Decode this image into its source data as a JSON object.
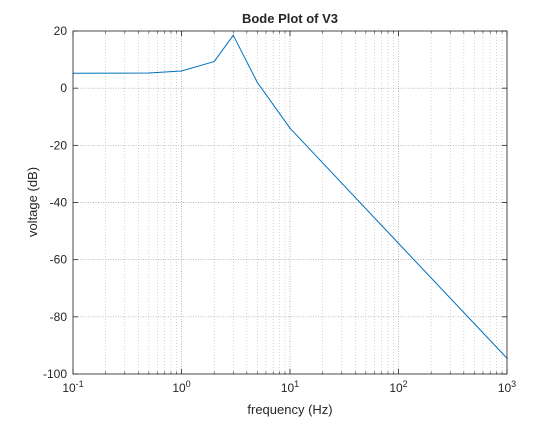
{
  "chart_data": {
    "type": "line",
    "title": "Bode Plot of V3",
    "xlabel": "frequency (Hz)",
    "ylabel": "voltage (dB)",
    "xscale": "log",
    "xlim": [
      0.1,
      1000
    ],
    "ylim": [
      -100,
      20
    ],
    "grid": "on (major and minor)",
    "x_ticks": [
      0.1,
      1,
      10,
      100,
      1000
    ],
    "x_tick_labels": [
      {
        "base": "10",
        "exp": "-1"
      },
      {
        "base": "10",
        "exp": "0"
      },
      {
        "base": "10",
        "exp": "1"
      },
      {
        "base": "10",
        "exp": "2"
      },
      {
        "base": "10",
        "exp": "3"
      }
    ],
    "y_ticks": [
      20,
      0,
      -20,
      -40,
      -60,
      -80,
      -100
    ],
    "y_tick_labels": [
      "20",
      "0",
      "-20",
      "-40",
      "-60",
      "-80",
      "-100"
    ],
    "series": [
      {
        "color": "#0072bd",
        "x": [
          0.1,
          0.5,
          1,
          2,
          3,
          5,
          10,
          100,
          1000
        ],
        "y": [
          5.2,
          5.3,
          6.0,
          9.3,
          18.5,
          2.0,
          -14.0,
          -54.3,
          -94.5
        ]
      }
    ]
  }
}
